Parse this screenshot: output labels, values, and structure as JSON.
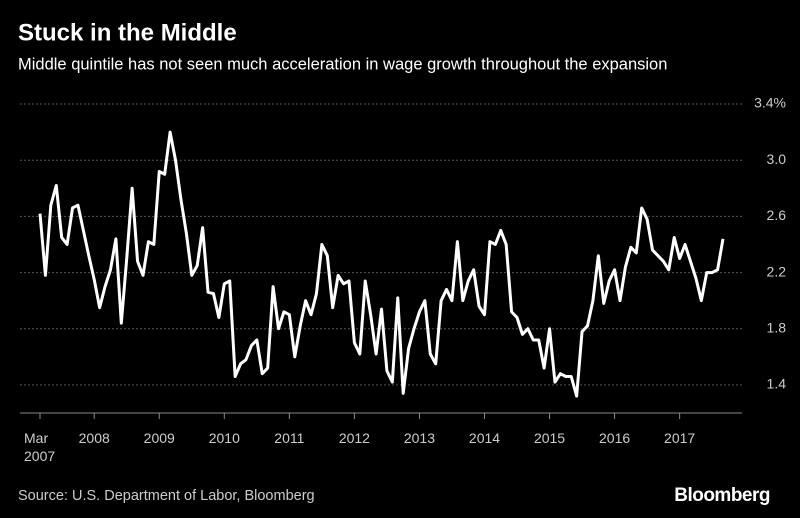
{
  "chart_data": {
    "type": "line",
    "title": "Stuck in the Middle",
    "subtitle": "Middle quintile has not seen much acceleration in wage growth throughout the expansion",
    "source": "Source: U.S. Department of Labor, Bloomberg",
    "brand": "Bloomberg",
    "categories": [
      "Mar 2007",
      null,
      null,
      null,
      null,
      null,
      null,
      null,
      null,
      null,
      "2008",
      null,
      null,
      null,
      null,
      null,
      null,
      null,
      null,
      null,
      null,
      null,
      "2009",
      null,
      null,
      null,
      null,
      null,
      null,
      null,
      null,
      null,
      null,
      null,
      "2010",
      null,
      null,
      null,
      null,
      null,
      null,
      null,
      null,
      null,
      null,
      null,
      "2011",
      null,
      null,
      null,
      null,
      null,
      null,
      null,
      null,
      null,
      null,
      null,
      "2012",
      null,
      null,
      null,
      null,
      null,
      null,
      null,
      null,
      null,
      null,
      null,
      "2013",
      null,
      null,
      null,
      null,
      null,
      null,
      null,
      null,
      null,
      null,
      null,
      "2014",
      null,
      null,
      null,
      null,
      null,
      null,
      null,
      null,
      null,
      null,
      null,
      "2015",
      null,
      null,
      null,
      null,
      null,
      null,
      null,
      null,
      null,
      null,
      null,
      "2016",
      null,
      null,
      null,
      null,
      null,
      null,
      null,
      null,
      null,
      null,
      null,
      "2017",
      null,
      null,
      null,
      null,
      null,
      null,
      null,
      null
    ],
    "values": [
      2.62,
      2.18,
      2.68,
      2.82,
      2.45,
      2.4,
      2.66,
      2.68,
      2.5,
      2.32,
      2.15,
      1.95,
      2.1,
      2.22,
      2.44,
      1.84,
      2.3,
      2.8,
      2.28,
      2.18,
      2.42,
      2.4,
      2.92,
      2.9,
      3.2,
      3.0,
      2.72,
      2.48,
      2.18,
      2.25,
      2.52,
      2.06,
      2.05,
      1.88,
      2.12,
      2.14,
      1.46,
      1.55,
      1.58,
      1.68,
      1.72,
      1.48,
      1.52,
      2.1,
      1.8,
      1.92,
      1.9,
      1.6,
      1.82,
      2.0,
      1.9,
      2.05,
      2.4,
      2.32,
      1.95,
      2.18,
      2.12,
      2.14,
      1.7,
      1.62,
      2.14,
      1.9,
      1.62,
      1.94,
      1.5,
      1.42,
      2.02,
      1.34,
      1.66,
      1.8,
      1.92,
      2.0,
      1.62,
      1.55,
      2.0,
      2.08,
      2.0,
      2.42,
      2.0,
      2.14,
      2.22,
      1.96,
      1.9,
      2.42,
      2.4,
      2.5,
      2.4,
      1.92,
      1.88,
      1.76,
      1.8,
      1.72,
      1.72,
      1.52,
      1.8,
      1.42,
      1.48,
      1.46,
      1.46,
      1.32,
      1.78,
      1.82,
      2.0,
      2.32,
      1.98,
      2.14,
      2.22,
      2.0,
      2.24,
      2.38,
      2.34,
      2.66,
      2.58,
      2.36,
      2.32,
      2.28,
      2.22,
      2.45,
      2.3,
      2.4,
      2.28,
      2.16,
      2.0,
      2.2,
      2.2,
      2.22,
      2.44
    ],
    "color": "#ffffff",
    "ylim": [
      1.2,
      3.5
    ],
    "yticks": [
      1.4,
      1.8,
      2.2,
      2.6,
      {
        "value": 3,
        "label": "3.0"
      },
      {
        "value": 3.4,
        "label": "3.4%"
      }
    ],
    "grid": true
  }
}
